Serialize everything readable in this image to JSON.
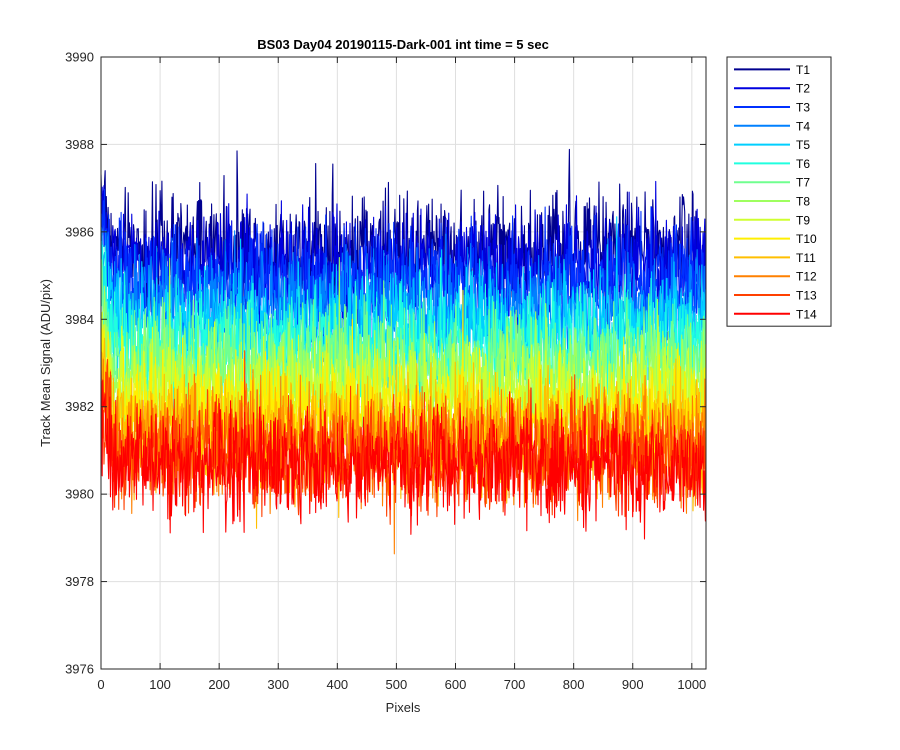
{
  "chart_data": {
    "type": "line",
    "title": "BS03 Day04 20190115-Dark-001 int time = 5 sec",
    "xlabel": "Pixels",
    "ylabel": "Track Mean Signal (ADU/pix)",
    "xlim": [
      0,
      1024
    ],
    "ylim": [
      3976,
      3990
    ],
    "xticks": [
      0,
      100,
      200,
      300,
      400,
      500,
      600,
      700,
      800,
      900,
      1000
    ],
    "yticks": [
      3976,
      3978,
      3980,
      3982,
      3984,
      3986,
      3988,
      3990
    ],
    "grid": true,
    "legend_position": "outside-top-right",
    "n_points": 1024,
    "series": [
      {
        "name": "T1",
        "color": "#00008f",
        "mean": 3985.6,
        "spread": 0.9
      },
      {
        "name": "T2",
        "color": "#0000df",
        "mean": 3985.2,
        "spread": 0.9
      },
      {
        "name": "T3",
        "color": "#0030ff",
        "mean": 3984.8,
        "spread": 0.9
      },
      {
        "name": "T4",
        "color": "#0080ff",
        "mean": 3984.3,
        "spread": 0.9
      },
      {
        "name": "T5",
        "color": "#00cfff",
        "mean": 3983.8,
        "spread": 0.9
      },
      {
        "name": "T6",
        "color": "#20ffdf",
        "mean": 3983.4,
        "spread": 0.9
      },
      {
        "name": "T7",
        "color": "#70ff8f",
        "mean": 3983.0,
        "spread": 0.9
      },
      {
        "name": "T8",
        "color": "#9fff5f",
        "mean": 3982.6,
        "spread": 0.9
      },
      {
        "name": "T9",
        "color": "#cfff30",
        "mean": 3982.2,
        "spread": 0.9
      },
      {
        "name": "T10",
        "color": "#ffef00",
        "mean": 3981.8,
        "spread": 0.9
      },
      {
        "name": "T11",
        "color": "#ffbf00",
        "mean": 3981.4,
        "spread": 0.9
      },
      {
        "name": "T12",
        "color": "#ff8000",
        "mean": 3981.1,
        "spread": 0.9
      },
      {
        "name": "T13",
        "color": "#ff4000",
        "mean": 3980.9,
        "spread": 0.9
      },
      {
        "name": "T14",
        "color": "#ff0000",
        "mean": 3980.7,
        "spread": 0.9
      }
    ]
  }
}
